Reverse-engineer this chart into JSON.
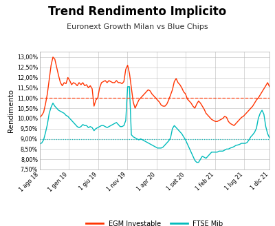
{
  "title": "Trend Rendimento Implicito",
  "subtitle": "Euronext Growth Milan vs Blue Chips",
  "ylabel": "Rendimento",
  "egm_label": "EGM Investable",
  "ftse_label": "FTSE Mib",
  "egm_color": "#FF3300",
  "ftse_color": "#00BBBB",
  "hline_egm": 0.11,
  "hline_ftse": 0.09,
  "hline_egm_color": "#FF3300",
  "hline_ftse_color": "#00BBBB",
  "ylim": [
    0.075,
    0.1325
  ],
  "yticks": [
    0.075,
    0.08,
    0.085,
    0.09,
    0.095,
    0.1,
    0.105,
    0.11,
    0.115,
    0.12,
    0.125,
    0.13
  ],
  "ytick_labels": [
    "7,50%",
    "8,00%",
    "8,50%",
    "9,00%",
    "9,50%",
    "10,00%",
    "10,50%",
    "11,00%",
    "11,50%",
    "12,00%",
    "12,50%",
    "13,00%"
  ],
  "xtick_labels": [
    "1 ago 18",
    "1 gen 19",
    "1 giu 19",
    "1 nov 19",
    "1 apr 20",
    "1 set 20",
    "1 feb 21",
    "1 lug 21",
    "1 dic 21"
  ],
  "background_color": "#FFFFFF",
  "grid_color": "#BBBBBB",
  "egm_data": [
    0.1005,
    0.1015,
    0.103,
    0.107,
    0.112,
    0.119,
    0.126,
    0.13,
    0.129,
    0.125,
    0.121,
    0.1175,
    0.116,
    0.1175,
    0.117,
    0.12,
    0.1185,
    0.1165,
    0.1175,
    0.117,
    0.116,
    0.1175,
    0.1165,
    0.1175,
    0.116,
    0.1165,
    0.115,
    0.116,
    0.1145,
    0.106,
    0.109,
    0.11,
    0.115,
    0.1175,
    0.118,
    0.1185,
    0.1175,
    0.1185,
    0.118,
    0.1175,
    0.1175,
    0.1185,
    0.1175,
    0.1175,
    0.117,
    0.118,
    0.124,
    0.126,
    0.122,
    0.115,
    0.108,
    0.105,
    0.107,
    0.109,
    0.11,
    0.111,
    0.112,
    0.113,
    0.114,
    0.1135,
    0.112,
    0.111,
    0.11,
    0.109,
    0.108,
    0.1065,
    0.106,
    0.106,
    0.107,
    0.109,
    0.1115,
    0.114,
    0.118,
    0.1195,
    0.1175,
    0.1165,
    0.115,
    0.113,
    0.112,
    0.1095,
    0.1085,
    0.1075,
    0.106,
    0.105,
    0.107,
    0.1085,
    0.1075,
    0.106,
    0.1045,
    0.1025,
    0.1015,
    0.1005,
    0.0995,
    0.099,
    0.0985,
    0.0985,
    0.099,
    0.0995,
    0.1,
    0.101,
    0.1005,
    0.0985,
    0.0975,
    0.097,
    0.0965,
    0.0975,
    0.0985,
    0.0995,
    0.1005,
    0.101,
    0.102,
    0.103,
    0.104,
    0.105,
    0.106,
    0.1075,
    0.109,
    0.11,
    0.1115,
    0.113,
    0.1145,
    0.116,
    0.1175,
    0.1155
  ],
  "ftse_data": [
    0.0875,
    0.088,
    0.0895,
    0.093,
    0.097,
    0.1025,
    0.1055,
    0.1075,
    0.106,
    0.105,
    0.104,
    0.1035,
    0.103,
    0.1025,
    0.1015,
    0.101,
    0.1,
    0.099,
    0.098,
    0.097,
    0.096,
    0.0955,
    0.096,
    0.097,
    0.0965,
    0.0965,
    0.0955,
    0.096,
    0.0955,
    0.094,
    0.095,
    0.0955,
    0.096,
    0.0965,
    0.0965,
    0.096,
    0.0955,
    0.096,
    0.0965,
    0.097,
    0.0975,
    0.098,
    0.097,
    0.096,
    0.096,
    0.0965,
    0.099,
    0.1155,
    0.1155,
    0.092,
    0.091,
    0.0905,
    0.09,
    0.0895,
    0.09,
    0.0895,
    0.089,
    0.0885,
    0.088,
    0.0875,
    0.087,
    0.0865,
    0.086,
    0.0855,
    0.0855,
    0.0855,
    0.086,
    0.087,
    0.088,
    0.089,
    0.0905,
    0.095,
    0.0965,
    0.0955,
    0.0945,
    0.0935,
    0.0925,
    0.091,
    0.0895,
    0.0875,
    0.0855,
    0.0835,
    0.0815,
    0.0795,
    0.0785,
    0.0785,
    0.08,
    0.0815,
    0.081,
    0.0805,
    0.0815,
    0.0825,
    0.0835,
    0.0835,
    0.0835,
    0.0835,
    0.084,
    0.084,
    0.084,
    0.0845,
    0.085,
    0.085,
    0.0855,
    0.0858,
    0.0862,
    0.0868,
    0.087,
    0.0873,
    0.0878,
    0.0878,
    0.0878,
    0.0882,
    0.0895,
    0.091,
    0.092,
    0.0932,
    0.0952,
    0.1,
    0.1025,
    0.104,
    0.102,
    0.096,
    0.0925,
    0.0905
  ],
  "xtick_positions_normalized": [
    0.0,
    0.126,
    0.254,
    0.381,
    0.508,
    0.636,
    0.763,
    0.89,
    1.0
  ]
}
